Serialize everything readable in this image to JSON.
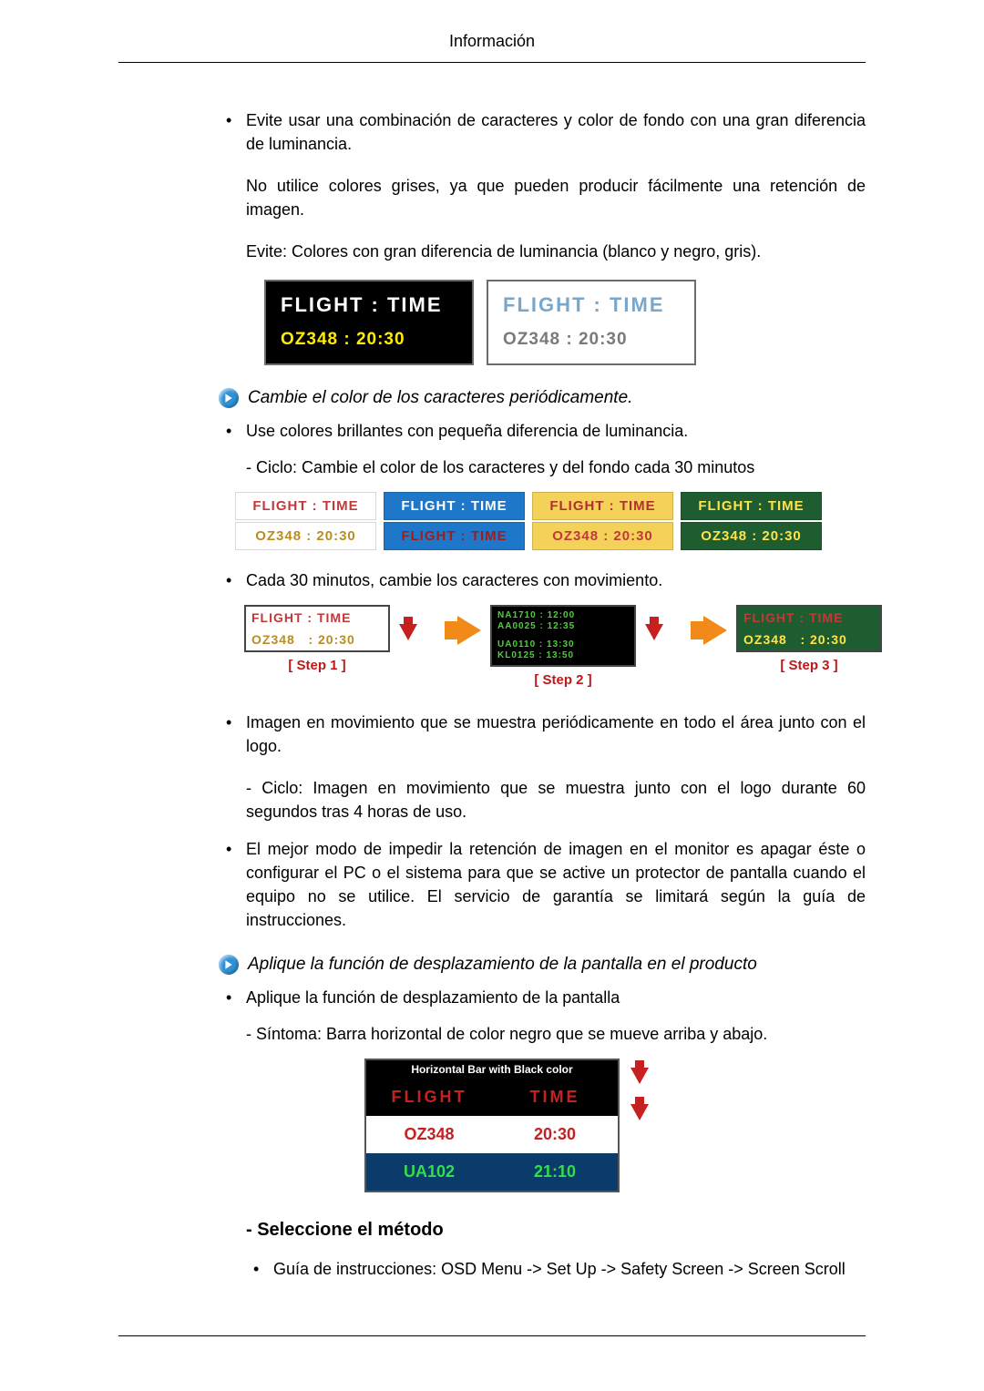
{
  "header": {
    "title": "Información"
  },
  "bullets_top": [
    "Evite usar una combinación de caracteres y color de fondo con una gran diferencia de luminancia."
  ],
  "paras_after_b1": [
    "No utilice colores grises, ya que pueden producir fácilmente una retención de imagen.",
    "Evite: Colores con gran diferencia de luminancia (blanco y negro, gris)."
  ],
  "flight_pair": {
    "left": {
      "bg": "#000000",
      "border": "#6b6b6b",
      "r1_text": "FLIGHT : TIME",
      "r1_color": "#ffffff",
      "r2_text": "OZ348   : 20:30",
      "r2_color": "#ffec00"
    },
    "right": {
      "bg": "#ffffff",
      "border": "#6b6b6b",
      "r1_text": "FLIGHT : TIME",
      "r1_color": "#7aa6c9",
      "r2_text": "OZ348   : 20:30",
      "r2_color": "#7a7a7a"
    }
  },
  "section2": {
    "heading": "Cambie el color de los caracteres periódicamente.",
    "bullet": "Use colores brillantes con pequeña diferencia de luminancia.",
    "sub": "- Ciclo: Cambie el color de los caracteres y del fondo cada 30 minutos",
    "strip": {
      "row1": [
        {
          "text": "FLIGHT : TIME",
          "bg": "#ffffff",
          "fg": "#c03a3a"
        },
        {
          "text": "FLIGHT : TIME",
          "bg": "#1f77c9",
          "fg": "#ffffff"
        },
        {
          "text": "FLIGHT : TIME",
          "bg": "#f4d25a",
          "fg": "#b13030"
        },
        {
          "text": "FLIGHT : TIME",
          "bg": "#1e5d2f",
          "fg": "#ffe34d"
        }
      ],
      "row2": [
        {
          "text": "OZ348   : 20:30",
          "bg": "#ffffff",
          "fg": "#b98d22"
        },
        {
          "text": "FLIGHT : TIME",
          "bg": "#1f77c9",
          "fg": "#9c1f1f"
        },
        {
          "text": "OZ348   : 20:30",
          "bg": "#f4d25a",
          "fg": "#c03a3a"
        },
        {
          "text": "OZ348   : 20:30",
          "bg": "#1e5d2f",
          "fg": "#ffe34d"
        }
      ]
    }
  },
  "section3": {
    "bullet": "Cada 30 minutos, cambie los caracteres con movimiento.",
    "steps": [
      {
        "cap": "[ Step 1 ]",
        "lines": [
          {
            "text": "FLIGHT : TIME",
            "bg": "#ffffff",
            "fg": "#c03a3a"
          },
          {
            "text": "OZ348   : 20:30",
            "bg": "#ffffff",
            "fg": "#b98d22"
          }
        ]
      },
      {
        "cap": "[ Step 2 ]",
        "lines": [
          {
            "text": "NA1710 : 12:00\nAA0025 : 12:35",
            "bg": "#000000",
            "fg": "#4cd038"
          },
          {
            "text": "UA0110 : 13:30\nKL0125 : 13:50",
            "bg": "#000000",
            "fg": "#4cd038"
          }
        ]
      },
      {
        "cap": "[ Step 3 ]",
        "lines": [
          {
            "text": "FLIGHT : TIME",
            "bg": "#1e5d2f",
            "fg": "#c03a3a"
          },
          {
            "text": "OZ348   : 20:30",
            "bg": "#1e5d2f",
            "fg": "#ffe34d"
          }
        ]
      }
    ]
  },
  "bullets_mid": [
    "Imagen en movimiento que se muestra periódicamente en todo el área junto con el logo.",
    "El mejor modo de impedir la retención de imagen en el monitor es apagar éste o configurar el PC o el sistema para que se active un protector de pantalla cuando el equipo no se utilice. El servicio de garantía se limitará según la guía de instrucciones."
  ],
  "mid_sub": "- Ciclo: Imagen en movimiento que se muestra junto con el logo durante 60 segundos tras 4 horas de uso.",
  "section4": {
    "heading": "Aplique la función de desplazamiento de la pantalla en el producto",
    "bullet": "Aplique la función de desplazamiento de la pantalla",
    "sub": "- Síntoma: Barra horizontal de color negro que se mueve arriba y abajo.",
    "hb": {
      "title": "Horizontal Bar with Black color",
      "row_hdr": {
        "left": "FLIGHT",
        "right": "TIME",
        "bg": "#000000",
        "fg": "#c62020"
      },
      "rows": [
        {
          "left": "OZ348",
          "right": "20:30",
          "bg": "#ffffff",
          "fg": "#c62020"
        },
        {
          "left": "UA102",
          "right": "21:10",
          "bg": "#0a3b6b",
          "fg": "#2fe04b"
        }
      ]
    },
    "method_title": "- Seleccione el método",
    "guide": "Guía de instrucciones: OSD Menu -> Set Up -> Safety Screen -> Screen Scroll"
  }
}
